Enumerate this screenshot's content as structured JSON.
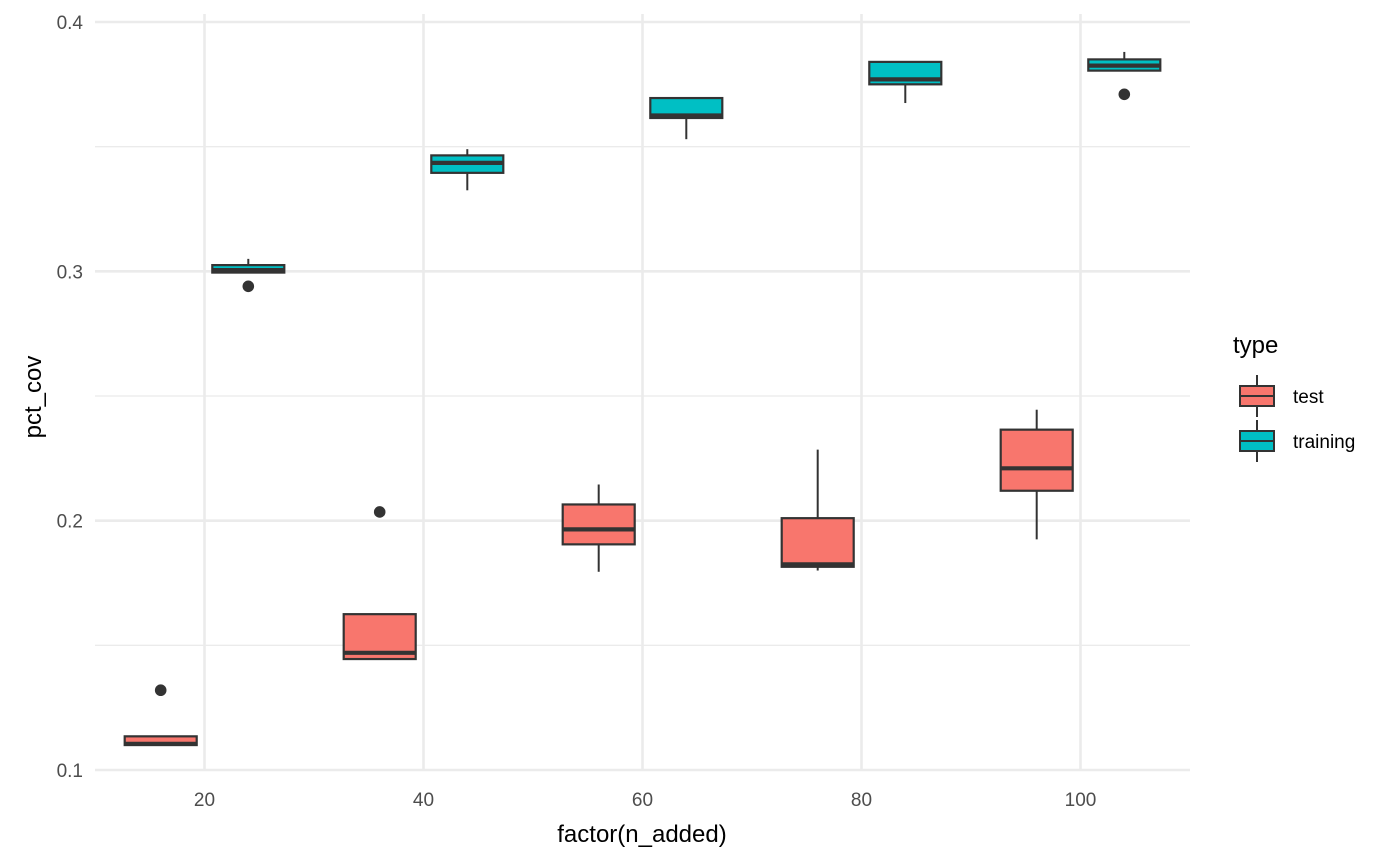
{
  "chart_data": {
    "type": "box",
    "xlabel": "factor(n_added)",
    "ylabel": "pct_cov",
    "x_ticks": [
      20,
      40,
      60,
      80,
      100
    ],
    "xlim": [
      10,
      110
    ],
    "y_ticks": [
      0.1,
      0.2,
      0.3,
      0.4
    ],
    "ylim": [
      0.1,
      0.4
    ],
    "grid": true,
    "legend": {
      "title": "type",
      "position": "right",
      "entries": [
        {
          "label": "test",
          "color": "#F8766D"
        },
        {
          "label": "training",
          "color": "#00BFC4"
        }
      ]
    },
    "series": [
      {
        "name": "test",
        "color": "#F8766D",
        "boxes": [
          {
            "x": 16,
            "q1": 0.11,
            "median": 0.1105,
            "q3": 0.1135,
            "whisker_low": 0.11,
            "whisker_high": 0.1135,
            "outliers": [
              0.132
            ]
          },
          {
            "x": 36,
            "q1": 0.1445,
            "median": 0.147,
            "q3": 0.1625,
            "whisker_low": 0.1445,
            "whisker_high": 0.1625,
            "outliers": [
              0.2035
            ]
          },
          {
            "x": 56,
            "q1": 0.1905,
            "median": 0.1965,
            "q3": 0.2065,
            "whisker_low": 0.1795,
            "whisker_high": 0.2145,
            "outliers": []
          },
          {
            "x": 76,
            "q1": 0.1815,
            "median": 0.1825,
            "q3": 0.201,
            "whisker_low": 0.18,
            "whisker_high": 0.2285,
            "outliers": []
          },
          {
            "x": 96,
            "q1": 0.212,
            "median": 0.221,
            "q3": 0.2365,
            "whisker_low": 0.1925,
            "whisker_high": 0.2445,
            "outliers": []
          }
        ]
      },
      {
        "name": "training",
        "color": "#00BFC4",
        "boxes": [
          {
            "x": 24,
            "q1": 0.2995,
            "median": 0.3005,
            "q3": 0.3025,
            "whisker_low": 0.2995,
            "whisker_high": 0.305,
            "outliers": [
              0.294
            ]
          },
          {
            "x": 44,
            "q1": 0.3395,
            "median": 0.3435,
            "q3": 0.3465,
            "whisker_low": 0.3325,
            "whisker_high": 0.349,
            "outliers": []
          },
          {
            "x": 64,
            "q1": 0.3615,
            "median": 0.3625,
            "q3": 0.3695,
            "whisker_low": 0.353,
            "whisker_high": 0.3695,
            "outliers": []
          },
          {
            "x": 84,
            "q1": 0.375,
            "median": 0.377,
            "q3": 0.384,
            "whisker_low": 0.3675,
            "whisker_high": 0.384,
            "outliers": []
          },
          {
            "x": 104,
            "q1": 0.3805,
            "median": 0.3825,
            "q3": 0.385,
            "whisker_low": 0.3805,
            "whisker_high": 0.388,
            "outliers": [
              0.371
            ]
          }
        ]
      }
    ]
  }
}
